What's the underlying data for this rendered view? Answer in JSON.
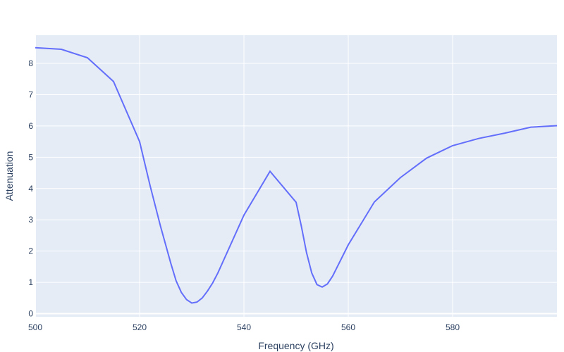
{
  "chart_data": {
    "type": "line",
    "xlabel": "Frequency (GHz)",
    "ylabel": "Attenuation",
    "xlim": [
      500,
      600
    ],
    "ylim": [
      -0.1,
      8.9
    ],
    "x_ticks": [
      500,
      520,
      540,
      560,
      580
    ],
    "y_ticks": [
      0,
      1,
      2,
      3,
      4,
      5,
      6,
      7,
      8
    ],
    "grid": true,
    "colors": {
      "plot_bg": "#e5ecf6",
      "grid": "#ffffff",
      "line": "#636efa",
      "text": "#2a3f5f"
    },
    "series": [
      {
        "x": [
          500,
          505,
          510,
          515,
          520,
          522,
          524,
          526,
          527,
          528,
          529,
          530,
          531,
          532,
          533,
          534,
          535,
          540,
          545,
          550,
          551,
          552,
          553,
          554,
          555,
          556,
          557,
          560,
          565,
          570,
          575,
          580,
          585,
          590,
          595,
          600
        ],
        "y": [
          8.5,
          8.45,
          8.18,
          7.42,
          5.5,
          4.1,
          2.8,
          1.6,
          1.05,
          0.68,
          0.45,
          0.34,
          0.37,
          0.5,
          0.72,
          0.98,
          1.3,
          3.15,
          4.55,
          3.56,
          2.8,
          1.95,
          1.3,
          0.93,
          0.85,
          0.95,
          1.2,
          2.2,
          3.57,
          4.35,
          4.97,
          5.37,
          5.6,
          5.77,
          5.96,
          6.01
        ]
      }
    ]
  }
}
